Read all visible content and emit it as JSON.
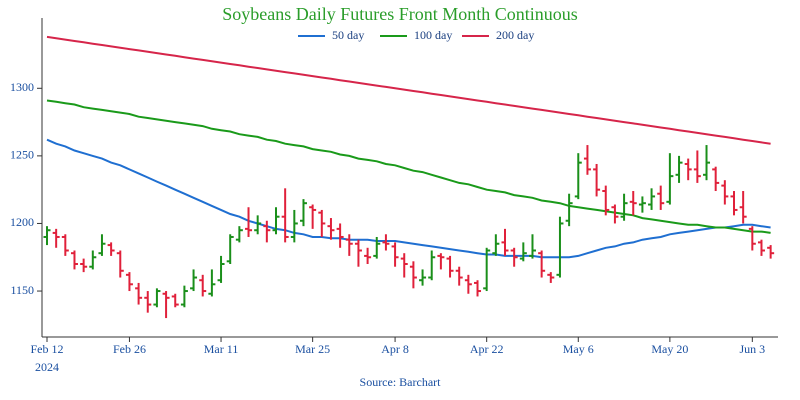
{
  "chart_data": {
    "type": "ohlc",
    "title": "Soybeans Daily Futures Front Month Continuous",
    "source": "Source: Barchart",
    "x_sublabel": "2024",
    "categories": [
      "Feb 12",
      null,
      null,
      null,
      null,
      null,
      null,
      null,
      null,
      "Feb 26",
      null,
      null,
      null,
      null,
      null,
      null,
      null,
      null,
      null,
      "Mar 11",
      null,
      null,
      null,
      null,
      null,
      null,
      null,
      null,
      null,
      "Mar 25",
      null,
      null,
      null,
      null,
      null,
      null,
      null,
      null,
      "Apr 8",
      null,
      null,
      null,
      null,
      null,
      null,
      null,
      null,
      null,
      "Apr 22",
      null,
      null,
      null,
      null,
      null,
      null,
      null,
      null,
      null,
      "May 6",
      null,
      null,
      null,
      null,
      null,
      null,
      null,
      null,
      null,
      "May 20",
      null,
      null,
      null,
      null,
      null,
      null,
      null,
      null,
      "Jun 3",
      null,
      null
    ],
    "ohlc": [
      [
        1190,
        1198,
        1184,
        1195
      ],
      [
        1193,
        1196,
        1182,
        1190
      ],
      [
        1190,
        1192,
        1176,
        1180
      ],
      [
        1178,
        1180,
        1166,
        1170
      ],
      [
        1170,
        1174,
        1164,
        1168
      ],
      [
        1168,
        1180,
        1166,
        1175
      ],
      [
        1178,
        1192,
        1176,
        1185
      ],
      [
        1184,
        1186,
        1176,
        1180
      ],
      [
        1178,
        1180,
        1160,
        1165
      ],
      [
        1162,
        1164,
        1150,
        1155
      ],
      [
        1152,
        1156,
        1140,
        1145
      ],
      [
        1145,
        1150,
        1134,
        1140
      ],
      [
        1140,
        1152,
        1138,
        1150
      ],
      [
        1148,
        1150,
        1130,
        1145
      ],
      [
        1146,
        1148,
        1138,
        1140
      ],
      [
        1140,
        1154,
        1138,
        1150
      ],
      [
        1152,
        1166,
        1150,
        1160
      ],
      [
        1158,
        1162,
        1146,
        1150
      ],
      [
        1148,
        1166,
        1146,
        1155
      ],
      [
        1158,
        1176,
        1156,
        1170
      ],
      [
        1172,
        1192,
        1170,
        1190
      ],
      [
        1188,
        1198,
        1186,
        1195
      ],
      [
        1196,
        1212,
        1190,
        1195
      ],
      [
        1195,
        1206,
        1192,
        1200
      ],
      [
        1198,
        1202,
        1186,
        1195
      ],
      [
        1195,
        1212,
        1192,
        1205
      ],
      [
        1205,
        1226,
        1186,
        1190
      ],
      [
        1190,
        1210,
        1186,
        1200
      ],
      [
        1202,
        1218,
        1198,
        1215
      ],
      [
        1212,
        1214,
        1196,
        1210
      ],
      [
        1208,
        1210,
        1190,
        1200
      ],
      [
        1198,
        1204,
        1188,
        1195
      ],
      [
        1196,
        1200,
        1182,
        1190
      ],
      [
        1188,
        1192,
        1176,
        1185
      ],
      [
        1185,
        1188,
        1168,
        1180
      ],
      [
        1176,
        1182,
        1170,
        1175
      ],
      [
        1176,
        1190,
        1174,
        1185
      ],
      [
        1186,
        1192,
        1180,
        1185
      ],
      [
        1183,
        1186,
        1168,
        1175
      ],
      [
        1174,
        1178,
        1160,
        1170
      ],
      [
        1168,
        1172,
        1152,
        1160
      ],
      [
        1158,
        1166,
        1154,
        1160
      ],
      [
        1160,
        1180,
        1158,
        1175
      ],
      [
        1176,
        1178,
        1166,
        1175
      ],
      [
        1174,
        1176,
        1160,
        1165
      ],
      [
        1165,
        1168,
        1154,
        1160
      ],
      [
        1158,
        1162,
        1148,
        1155
      ],
      [
        1156,
        1158,
        1146,
        1150
      ],
      [
        1152,
        1182,
        1150,
        1180
      ],
      [
        1178,
        1192,
        1176,
        1185
      ],
      [
        1186,
        1196,
        1176,
        1180
      ],
      [
        1180,
        1182,
        1168,
        1175
      ],
      [
        1174,
        1186,
        1172,
        1178
      ],
      [
        1176,
        1192,
        1174,
        1180
      ],
      [
        1178,
        1180,
        1160,
        1165
      ],
      [
        1162,
        1164,
        1156,
        1160
      ],
      [
        1162,
        1205,
        1160,
        1200
      ],
      [
        1202,
        1222,
        1198,
        1215
      ],
      [
        1220,
        1252,
        1218,
        1245
      ],
      [
        1248,
        1258,
        1236,
        1240
      ],
      [
        1240,
        1244,
        1220,
        1225
      ],
      [
        1224,
        1228,
        1206,
        1210
      ],
      [
        1212,
        1214,
        1200,
        1205
      ],
      [
        1205,
        1222,
        1202,
        1215
      ],
      [
        1216,
        1224,
        1206,
        1215
      ],
      [
        1214,
        1220,
        1208,
        1215
      ],
      [
        1214,
        1226,
        1210,
        1220
      ],
      [
        1222,
        1228,
        1210,
        1215
      ],
      [
        1216,
        1252,
        1214,
        1235
      ],
      [
        1236,
        1250,
        1230,
        1245
      ],
      [
        1244,
        1248,
        1232,
        1240
      ],
      [
        1240,
        1254,
        1230,
        1235
      ],
      [
        1236,
        1258,
        1232,
        1245
      ],
      [
        1240,
        1242,
        1224,
        1230
      ],
      [
        1228,
        1232,
        1214,
        1220
      ],
      [
        1220,
        1224,
        1206,
        1210
      ],
      [
        1212,
        1224,
        1200,
        1205
      ],
      [
        1196,
        1198,
        1180,
        1185
      ],
      [
        1186,
        1188,
        1176,
        1180
      ],
      [
        1182,
        1184,
        1174,
        1178
      ]
    ],
    "up_color": "#1a8f1a",
    "down_color": "#e0203a",
    "series": [
      {
        "name": "50 day",
        "color": "#1f6fd1",
        "values": [
          1262,
          1259,
          1257,
          1254,
          1252,
          1250,
          1248,
          1245,
          1243,
          1240,
          1237,
          1234,
          1231,
          1228,
          1225,
          1222,
          1219,
          1216,
          1213,
          1210,
          1207,
          1205,
          1202,
          1200,
          1198,
          1196,
          1195,
          1193,
          1192,
          1190,
          1190,
          1189,
          1189,
          1188,
          1188,
          1188,
          1187,
          1187,
          1187,
          1186,
          1185,
          1184,
          1183,
          1182,
          1181,
          1180,
          1179,
          1178,
          1177,
          1177,
          1176,
          1176,
          1176,
          1176,
          1175,
          1175,
          1175,
          1175,
          1176,
          1178,
          1180,
          1182,
          1183,
          1185,
          1186,
          1188,
          1189,
          1190,
          1192,
          1193,
          1194,
          1195,
          1196,
          1197,
          1197,
          1198,
          1199,
          1199,
          1198,
          1197
        ]
      },
      {
        "name": "100 day",
        "color": "#1a9a1a",
        "values": [
          1291,
          1290,
          1289,
          1288,
          1286,
          1285,
          1284,
          1283,
          1282,
          1281,
          1279,
          1278,
          1277,
          1276,
          1275,
          1274,
          1273,
          1272,
          1270,
          1269,
          1268,
          1266,
          1265,
          1264,
          1262,
          1261,
          1259,
          1258,
          1257,
          1255,
          1254,
          1253,
          1251,
          1250,
          1248,
          1247,
          1246,
          1244,
          1243,
          1241,
          1239,
          1238,
          1236,
          1234,
          1232,
          1230,
          1229,
          1227,
          1225,
          1224,
          1223,
          1221,
          1220,
          1219,
          1217,
          1216,
          1215,
          1213,
          1212,
          1211,
          1210,
          1209,
          1208,
          1207,
          1206,
          1204,
          1203,
          1202,
          1201,
          1200,
          1199,
          1199,
          1198,
          1197,
          1197,
          1196,
          1195,
          1194,
          1194,
          1193
        ]
      },
      {
        "name": "200 day",
        "color": "#d6254a",
        "values": [
          1338,
          1337,
          1336,
          1335,
          1334,
          1333,
          1332,
          1331,
          1330,
          1329,
          1328,
          1327,
          1326,
          1325,
          1324,
          1323,
          1322,
          1321,
          1320,
          1319,
          1318,
          1317,
          1316,
          1315,
          1314,
          1313,
          1312,
          1311,
          1310,
          1309,
          1308,
          1307,
          1306,
          1305,
          1304,
          1303,
          1302,
          1301,
          1300,
          1299,
          1298,
          1297,
          1296,
          1295,
          1294,
          1293,
          1292,
          1291,
          1290,
          1289,
          1288,
          1287,
          1286,
          1285,
          1284,
          1283,
          1282,
          1281,
          1280,
          1279,
          1278,
          1277,
          1276,
          1275,
          1274,
          1273,
          1272,
          1271,
          1270,
          1269,
          1268,
          1267,
          1266,
          1265,
          1264,
          1263,
          1262,
          1261,
          1260,
          1259
        ]
      }
    ],
    "ylim": [
      1116,
      1352
    ],
    "yticks": [
      1150,
      1200,
      1250,
      1300
    ]
  }
}
